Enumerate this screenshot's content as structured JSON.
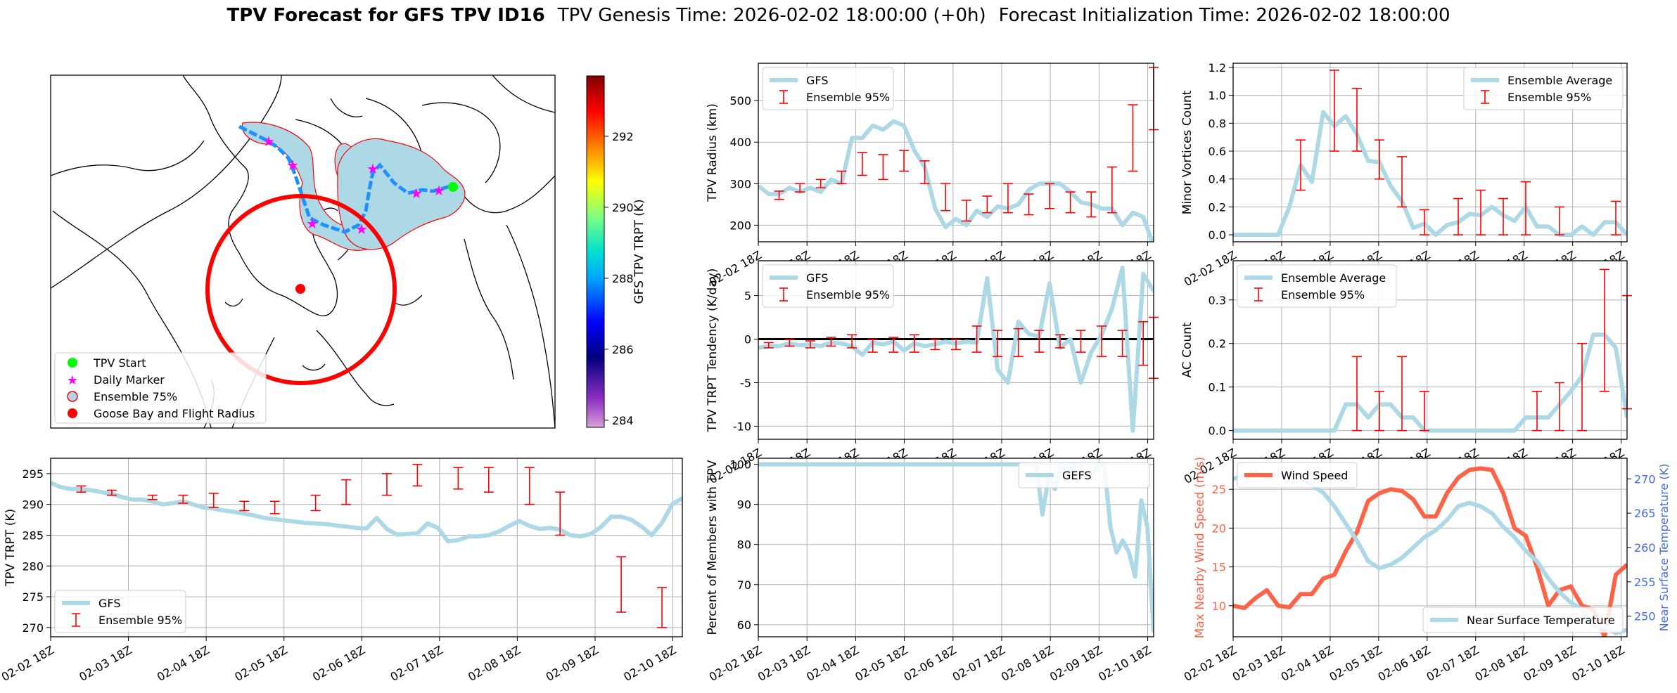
{
  "title": {
    "bold": "TPV Forecast for GFS TPV ID16",
    "genesis": "TPV Genesis Time: 2026-02-02 18:00:00 (+0h)",
    "init": "Forecast Initialization Time: 2026-02-02 18:00:00"
  },
  "x_ticks": [
    "02-02 18Z",
    "02-03 18Z",
    "02-04 18Z",
    "02-05 18Z",
    "02-06 18Z",
    "02-07 18Z",
    "02-08 18Z",
    "02-09 18Z",
    "02-10 18Z"
  ],
  "colors": {
    "series": "#add8e6",
    "err": "#ff0000",
    "wind": "#ff6347",
    "temp": "#add8e6",
    "axis_red": "#ff6347",
    "axis_blue": "#4169e1"
  },
  "map": {
    "colorbar_label": "GFS TPV TRPT (K)",
    "colorbar_ticks": [
      284,
      286,
      288,
      290,
      292
    ],
    "colorbar_range": [
      283.8,
      293.7
    ],
    "legend": [
      "TPV Start",
      "Daily Marker",
      "Ensemble 75%",
      "Goose Bay and Flight Radius"
    ]
  },
  "chart_data": [
    {
      "id": "radius",
      "type": "line",
      "ylabel": "TPV Radius (km)",
      "ylim": [
        160,
        590
      ],
      "yticks": [
        200,
        300,
        400,
        500
      ],
      "legend_pos": "top-left",
      "legend": [
        "GFS",
        "Ensemble 95%"
      ],
      "series": [
        {
          "name": "GFS",
          "values": [
            295,
            275,
            275,
            290,
            280,
            290,
            280,
            310,
            300,
            410,
            410,
            440,
            430,
            450,
            440,
            380,
            340,
            240,
            195,
            215,
            200,
            235,
            220,
            245,
            240,
            250,
            285,
            300,
            300,
            300,
            280,
            255,
            250,
            240,
            240,
            200,
            230,
            220,
            150
          ]
        }
      ],
      "errorbars": [
        {
          "i": 2,
          "lo": 262,
          "hi": 282
        },
        {
          "i": 4,
          "lo": 280,
          "hi": 300
        },
        {
          "i": 6,
          "lo": 290,
          "hi": 310
        },
        {
          "i": 8,
          "lo": 300,
          "hi": 330
        },
        {
          "i": 10,
          "lo": 320,
          "hi": 375
        },
        {
          "i": 12,
          "lo": 310,
          "hi": 370
        },
        {
          "i": 14,
          "lo": 330,
          "hi": 380
        },
        {
          "i": 16,
          "lo": 300,
          "hi": 355
        },
        {
          "i": 18,
          "lo": 235,
          "hi": 300
        },
        {
          "i": 20,
          "lo": 210,
          "hi": 260
        },
        {
          "i": 22,
          "lo": 230,
          "hi": 270
        },
        {
          "i": 24,
          "lo": 230,
          "hi": 300
        },
        {
          "i": 26,
          "lo": 225,
          "hi": 275
        },
        {
          "i": 28,
          "lo": 240,
          "hi": 300
        },
        {
          "i": 30,
          "lo": 230,
          "hi": 280
        },
        {
          "i": 32,
          "lo": 220,
          "hi": 280
        },
        {
          "i": 34,
          "lo": 230,
          "hi": 340
        },
        {
          "i": 36,
          "lo": 330,
          "hi": 490
        },
        {
          "i": 38,
          "lo": 430,
          "hi": 580
        }
      ]
    },
    {
      "id": "tendency",
      "type": "line",
      "ylabel": "TPV TRPT Tendency (K/day)",
      "ylim": [
        -11.5,
        9
      ],
      "yticks": [
        -10,
        -5,
        0,
        5
      ],
      "zero_line": true,
      "legend_pos": "top-left",
      "legend": [
        "GFS",
        "Ensemble 95%"
      ],
      "series": [
        {
          "name": "GFS",
          "values": [
            -1.0,
            -0.8,
            -0.8,
            -0.5,
            -0.7,
            -0.6,
            -0.8,
            -0.4,
            -0.5,
            -0.8,
            -1.8,
            -0.4,
            -0.6,
            -0.3,
            -1.3,
            -0.5,
            -0.8,
            -0.6,
            -0.3,
            -0.5,
            -0.3,
            -0.4,
            7.0,
            -3.5,
            -5.0,
            2.0,
            0.6,
            0.3,
            6.4,
            -1.0,
            0.0,
            -5.0,
            -1.5,
            0.5,
            3.5,
            8.2,
            -10.5,
            7.5,
            5.5
          ]
        }
      ],
      "errorbars": [
        {
          "i": 1,
          "lo": -1.0,
          "hi": -0.4
        },
        {
          "i": 3,
          "lo": -0.8,
          "hi": 0.0
        },
        {
          "i": 5,
          "lo": -1.0,
          "hi": -0.2
        },
        {
          "i": 7,
          "lo": -0.8,
          "hi": 0.2
        },
        {
          "i": 9,
          "lo": -1.0,
          "hi": 0.5
        },
        {
          "i": 11,
          "lo": -1.5,
          "hi": 0.0
        },
        {
          "i": 13,
          "lo": -1.5,
          "hi": 0.2
        },
        {
          "i": 15,
          "lo": -1.5,
          "hi": 0.5
        },
        {
          "i": 17,
          "lo": -1.2,
          "hi": 0.0
        },
        {
          "i": 19,
          "lo": -1.2,
          "hi": 0.0
        },
        {
          "i": 21,
          "lo": -1.5,
          "hi": 1.5
        },
        {
          "i": 23,
          "lo": -2.0,
          "hi": 1.0
        },
        {
          "i": 25,
          "lo": -2.0,
          "hi": 1.2
        },
        {
          "i": 27,
          "lo": -1.5,
          "hi": 1.0
        },
        {
          "i": 29,
          "lo": -1.0,
          "hi": 0.5
        },
        {
          "i": 31,
          "lo": -1.5,
          "hi": 1.0
        },
        {
          "i": 33,
          "lo": -2.0,
          "hi": 1.5
        },
        {
          "i": 35,
          "lo": -2.0,
          "hi": 1.0
        },
        {
          "i": 37,
          "lo": -3.0,
          "hi": 2.0
        },
        {
          "i": 38,
          "lo": -4.5,
          "hi": 2.5
        }
      ]
    },
    {
      "id": "trpt",
      "type": "line",
      "ylabel": "TPV TRPT (K)",
      "ylim": [
        268.5,
        297.5
      ],
      "yticks": [
        270,
        275,
        280,
        285,
        290,
        295
      ],
      "legend_pos": "bottom-left",
      "legend": [
        "GFS",
        "Ensemble 95%"
      ],
      "series": [
        {
          "name": "GFS",
          "values": [
            293.5,
            292.8,
            292.5,
            292.5,
            292.3,
            292.0,
            291.7,
            291.2,
            290.8,
            290.8,
            290.5,
            290.0,
            290.2,
            290.5,
            290.0,
            289.5,
            289.3,
            289.0,
            288.8,
            288.5,
            288.2,
            287.8,
            287.6,
            287.4,
            287.2,
            287.0,
            286.9,
            286.8,
            286.6,
            286.4,
            286.2,
            286.1,
            287.8,
            286.0,
            285.1,
            285.2,
            285.3,
            286.9,
            286.2,
            284.0,
            284.2,
            284.8,
            284.8,
            285.0,
            285.6,
            286.5,
            287.3,
            286.5,
            286.0,
            286.2,
            285.9,
            285.0,
            284.8,
            285.2,
            286.3,
            288.0,
            288.0,
            287.5,
            286.4,
            285.0,
            287.0,
            290.0,
            291.0
          ]
        }
      ],
      "errorbars": [
        {
          "i": 3,
          "lo": 292.0,
          "hi": 293.0
        },
        {
          "i": 6,
          "lo": 291.5,
          "hi": 292.3
        },
        {
          "i": 10,
          "lo": 290.8,
          "hi": 291.5
        },
        {
          "i": 13,
          "lo": 290.2,
          "hi": 291.5
        },
        {
          "i": 16,
          "lo": 289.5,
          "hi": 291.8
        },
        {
          "i": 19,
          "lo": 289.0,
          "hi": 290.5
        },
        {
          "i": 22,
          "lo": 288.5,
          "hi": 290.5
        },
        {
          "i": 26,
          "lo": 289.0,
          "hi": 291.5
        },
        {
          "i": 29,
          "lo": 290.0,
          "hi": 294.0
        },
        {
          "i": 33,
          "lo": 291.5,
          "hi": 295.0
        },
        {
          "i": 36,
          "lo": 293.0,
          "hi": 296.5
        },
        {
          "i": 40,
          "lo": 292.5,
          "hi": 296.0
        },
        {
          "i": 43,
          "lo": 292.0,
          "hi": 296.0
        },
        {
          "i": 47,
          "lo": 290.0,
          "hi": 296.0
        },
        {
          "i": 50,
          "lo": 285.0,
          "hi": 292.0
        },
        {
          "i": 56,
          "lo": 272.5,
          "hi": 281.5
        },
        {
          "i": 60,
          "lo": 270.0,
          "hi": 276.5
        }
      ]
    },
    {
      "id": "members",
      "type": "line",
      "ylabel": "Percent of Members with TPV",
      "ylim": [
        57,
        101.5
      ],
      "yticks": [
        60,
        70,
        80,
        90,
        100
      ],
      "legend_pos": "top-right",
      "legend": [
        "GEFS"
      ],
      "series": [
        {
          "name": "GEFS",
          "values": [
            100,
            100,
            100,
            100,
            100,
            100,
            100,
            100,
            100,
            100,
            100,
            100,
            100,
            100,
            100,
            100,
            100,
            100,
            100,
            100,
            100,
            100,
            100,
            100,
            100,
            100,
            100,
            100,
            100,
            100,
            100,
            100,
            100,
            100,
            100,
            100,
            100,
            100,
            100,
            100,
            100,
            100,
            100,
            100,
            100,
            100,
            87.5,
            96.9,
            93.8,
            100,
            96.9,
            100,
            100,
            96.9,
            96.9,
            100,
            100,
            84.4,
            78,
            81,
            78,
            72,
            91,
            84.4,
            58
          ]
        }
      ]
    },
    {
      "id": "minor",
      "type": "line",
      "ylabel": "Minor Vortices Count",
      "ylim": [
        -0.05,
        1.23
      ],
      "yticks": [
        0.0,
        0.2,
        0.4,
        0.6,
        0.8,
        1.0,
        1.2
      ],
      "legend_pos": "top-right",
      "legend": [
        "Ensemble Average",
        "Ensemble 95%"
      ],
      "series": [
        {
          "name": "Ensemble Average",
          "values": [
            0,
            0,
            0,
            0,
            0,
            0.2,
            0.5,
            0.38,
            0.88,
            0.78,
            0.85,
            0.72,
            0.53,
            0.52,
            0.35,
            0.24,
            0.05,
            0.08,
            0.0,
            0.07,
            0.09,
            0.15,
            0.14,
            0.2,
            0.14,
            0.1,
            0.2,
            0.06,
            0.06,
            0.0,
            0.0,
            0.06,
            0.0,
            0.09,
            0.09,
            0.0
          ]
        }
      ],
      "errorbars": [
        {
          "i": 6,
          "lo": 0.32,
          "hi": 0.68
        },
        {
          "i": 9,
          "lo": 0.6,
          "hi": 1.18
        },
        {
          "i": 11,
          "lo": 0.6,
          "hi": 1.05
        },
        {
          "i": 13,
          "lo": 0.4,
          "hi": 0.68
        },
        {
          "i": 15,
          "lo": 0.2,
          "hi": 0.56
        },
        {
          "i": 17,
          "lo": 0.0,
          "hi": 0.18
        },
        {
          "i": 20,
          "lo": 0.0,
          "hi": 0.26
        },
        {
          "i": 22,
          "lo": 0.0,
          "hi": 0.32
        },
        {
          "i": 24,
          "lo": 0.0,
          "hi": 0.26
        },
        {
          "i": 26,
          "lo": 0.0,
          "hi": 0.38
        },
        {
          "i": 29,
          "lo": 0.0,
          "hi": 0.2
        },
        {
          "i": 34,
          "lo": 0.0,
          "hi": 0.24
        }
      ]
    },
    {
      "id": "ac",
      "type": "line",
      "ylabel": "AC Count",
      "ylim": [
        -0.02,
        0.39
      ],
      "yticks": [
        0.0,
        0.1,
        0.2,
        0.3
      ],
      "legend_pos": "top-left",
      "legend": [
        "Ensemble Average",
        "Ensemble 95%"
      ],
      "series": [
        {
          "name": "Ensemble Average",
          "values": [
            0,
            0,
            0,
            0,
            0,
            0,
            0,
            0,
            0,
            0,
            0.06,
            0.06,
            0.03,
            0.06,
            0.06,
            0.03,
            0.03,
            0,
            0,
            0,
            0,
            0,
            0,
            0,
            0,
            0,
            0.03,
            0.03,
            0.03,
            0.06,
            0.09,
            0.125,
            0.22,
            0.22,
            0.19,
            0.03
          ]
        }
      ],
      "errorbars": [
        {
          "i": 11,
          "lo": 0.0,
          "hi": 0.17
        },
        {
          "i": 13,
          "lo": 0.0,
          "hi": 0.09
        },
        {
          "i": 15,
          "lo": 0.0,
          "hi": 0.17
        },
        {
          "i": 17,
          "lo": 0.0,
          "hi": 0.09
        },
        {
          "i": 27,
          "lo": 0.0,
          "hi": 0.09
        },
        {
          "i": 29,
          "lo": 0.0,
          "hi": 0.11
        },
        {
          "i": 31,
          "lo": 0.0,
          "hi": 0.2
        },
        {
          "i": 33,
          "lo": 0.09,
          "hi": 0.37
        },
        {
          "i": 35,
          "lo": 0.05,
          "hi": 0.31
        }
      ]
    },
    {
      "id": "wind",
      "type": "line",
      "ylabel": "Max Nearby Wind Speed (m/s)",
      "ylabel2": "Near Surface Temperature (K)",
      "ylim": [
        6,
        29
      ],
      "yticks": [
        10,
        15,
        20,
        25
      ],
      "ylim2": [
        247,
        273
      ],
      "yticks2": [
        250,
        255,
        260,
        265,
        270
      ],
      "legend": [
        "Wind Speed",
        "Near Surface Temperature"
      ],
      "series": [
        {
          "name": "Wind Speed",
          "axis": "left",
          "values": [
            10,
            9.7,
            11,
            12,
            10,
            9.8,
            11.5,
            11.5,
            13.5,
            14,
            17,
            19.5,
            23.5,
            24.5,
            25,
            24.8,
            23.7,
            21.5,
            21.5,
            24.5,
            26.5,
            27.5,
            27.7,
            27.5,
            24.5,
            20,
            19,
            15,
            10,
            12,
            12.5,
            10,
            9.5,
            6,
            14,
            15.3
          ]
        },
        {
          "name": "Near Surface Temperature",
          "axis": "right",
          "values": [
            270,
            270.5,
            271,
            270,
            270.5,
            270.8,
            270.5,
            269,
            268,
            266,
            263.5,
            261,
            258,
            257,
            257.5,
            258.5,
            260,
            261.5,
            262.5,
            264,
            266,
            266.5,
            266,
            265,
            263,
            261.5,
            259.5,
            258,
            255.5,
            253.5,
            252,
            251,
            248.5,
            248.5,
            247.5,
            248
          ]
        }
      ]
    }
  ]
}
